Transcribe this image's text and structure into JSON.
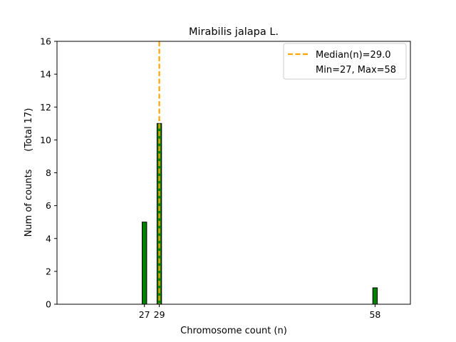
{
  "chart_data": {
    "type": "bar",
    "title": "Mirabilis jalapa L.",
    "xlabel": "Chromosome count (n)",
    "ylabel": "Num of counts      (Total 17)",
    "xlim": [
      15.25,
      62.75
    ],
    "ylim": [
      0,
      16
    ],
    "yticks": [
      0,
      2,
      4,
      6,
      8,
      10,
      12,
      14,
      16
    ],
    "xticks": [
      27,
      29,
      58
    ],
    "bars": [
      {
        "x": 27,
        "value": 5
      },
      {
        "x": 29,
        "value": 11
      },
      {
        "x": 58,
        "value": 1
      }
    ],
    "median": 29.0,
    "legend": {
      "position": "top-right",
      "entries": [
        "Median(n)=29.0",
        "Min=27, Max=58"
      ]
    },
    "colors": {
      "bar_fill": "#008000",
      "bar_edge": "#000000",
      "median_line": "#FFA500"
    }
  }
}
